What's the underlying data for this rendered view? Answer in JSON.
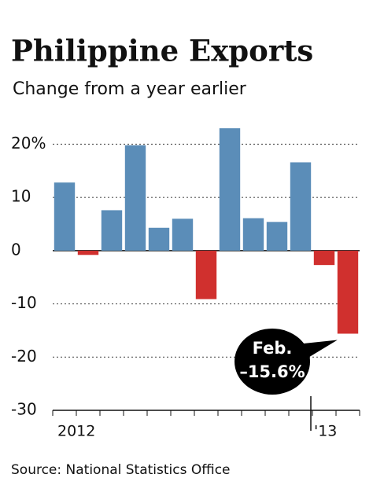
{
  "chart_data": {
    "type": "bar",
    "title": "Philippine Exports",
    "subtitle": "Change from a year earlier",
    "categories": [
      "2012",
      null,
      null,
      null,
      null,
      null,
      null,
      null,
      null,
      null,
      null,
      "'13",
      null
    ],
    "values": [
      12.8,
      -0.8,
      7.6,
      19.8,
      4.3,
      6.0,
      -9.1,
      23.0,
      6.1,
      5.4,
      16.6,
      -2.7,
      -15.6
    ],
    "value_labels": [
      null,
      null,
      null,
      null,
      null,
      null,
      null,
      null,
      null,
      null,
      null,
      null,
      "–15.6%"
    ],
    "annotation": "Feb.",
    "positive_color": "#5b8db8",
    "negative_color": "#d0302e",
    "ylim": [
      -30,
      24.5
    ],
    "yticks": [
      {
        "value": 20,
        "label": "20%"
      },
      10,
      0,
      -10,
      -20,
      -30
    ],
    "grid": true,
    "source": "Source: National Statistics Office"
  }
}
